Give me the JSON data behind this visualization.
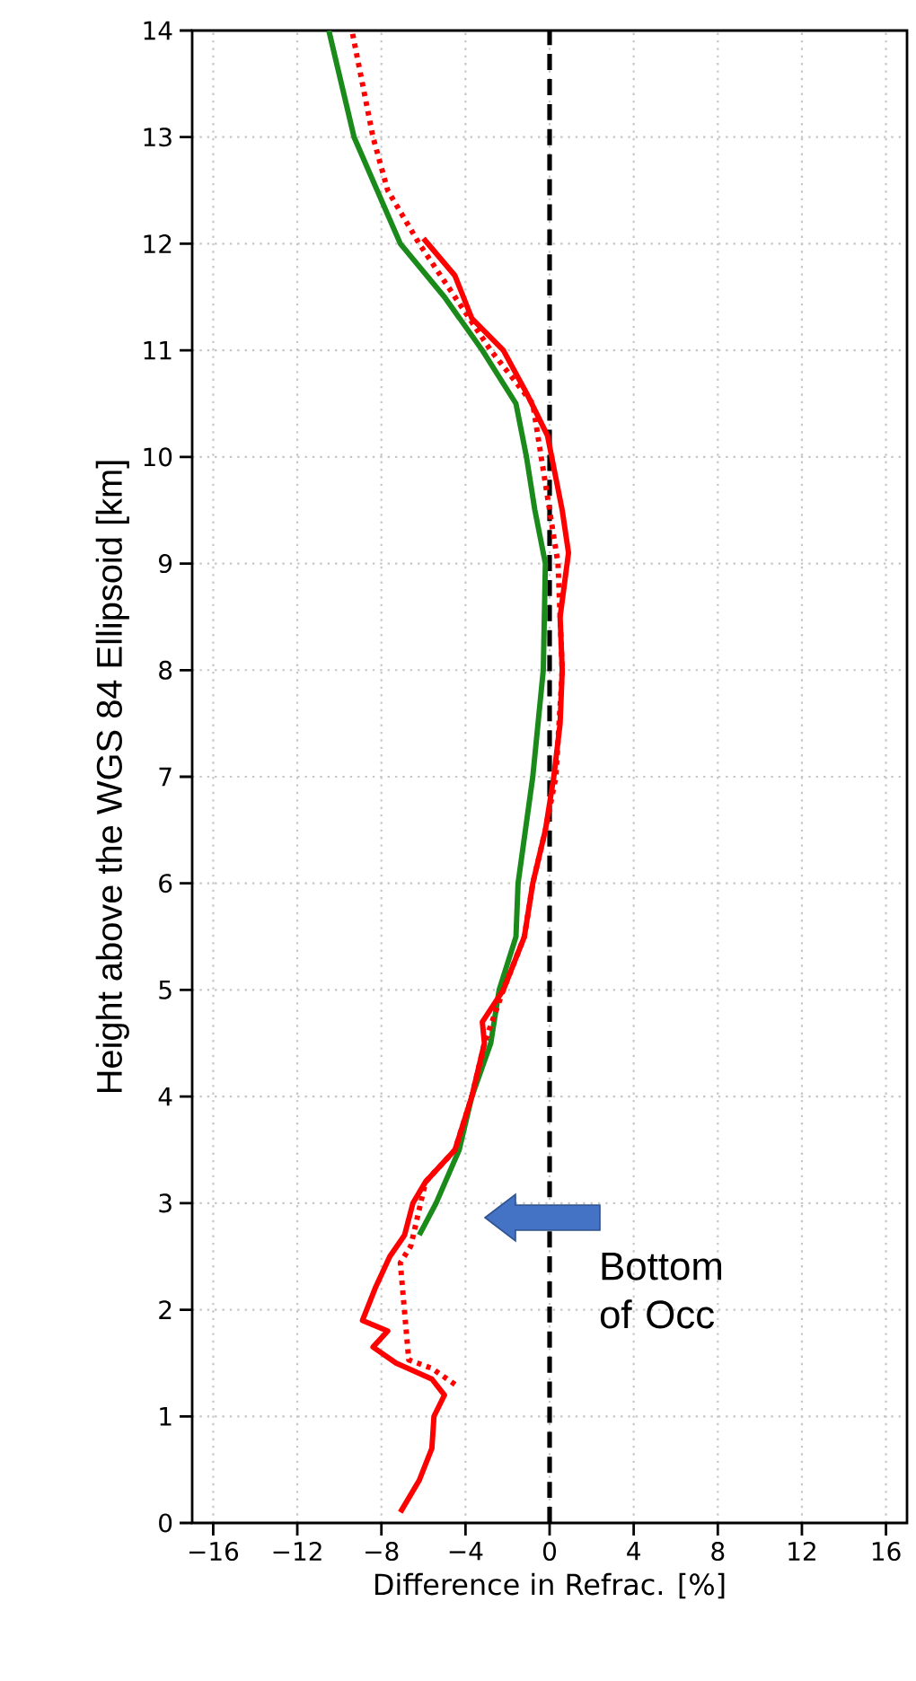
{
  "chart_data": {
    "type": "line",
    "xlabel": "Difference in Refrac.  [%]",
    "ylabel": "Height above the WGS 84 Ellipsoid  [km]",
    "xlim": [
      -17,
      17
    ],
    "ylim": [
      0,
      14
    ],
    "xticks": [
      {
        "value": -16,
        "label": "−16"
      },
      {
        "value": -12,
        "label": "−12"
      },
      {
        "value": -8,
        "label": "−8"
      },
      {
        "value": -4,
        "label": "−4"
      },
      0,
      4,
      8,
      12,
      16
    ],
    "yticks": [
      0,
      1,
      2,
      3,
      4,
      5,
      6,
      7,
      8,
      9,
      10,
      11,
      12,
      13,
      14
    ],
    "grid": true,
    "marker": "none",
    "series": [
      {
        "color": "#1a8a1a",
        "line_style": "solid",
        "x": [
          -6.2,
          -5.4,
          -4.3,
          -3.7,
          -2.8,
          -2.4,
          -1.6,
          -1.5,
          -0.8,
          -0.3,
          -0.2,
          -0.7,
          -1.1,
          -1.6,
          -3.2,
          -5.0,
          -7.1,
          -9.3,
          -10.5
        ],
        "values": [
          2.7,
          3,
          3.5,
          4,
          4.5,
          5,
          5.5,
          6,
          7,
          8,
          9,
          9.5,
          10,
          10.5,
          11,
          11.5,
          12,
          13,
          14
        ]
      },
      {
        "color": "#ff0000",
        "line_style": "solid",
        "x": [
          -7.1,
          -6.2,
          -5.6,
          -5.5,
          -5.0,
          -5.6,
          -7.3,
          -8.4,
          -7.7,
          -8.9,
          -8.3,
          -7.6,
          -6.9,
          -6.5,
          -5.9,
          -4.5,
          -3.7,
          -3.1,
          -3.2,
          -2.2,
          -1.2,
          -0.8,
          -0.2,
          0.2,
          0.5,
          0.6,
          0.5,
          0.9,
          0.6,
          -0.1,
          -1.1,
          -2.2,
          -3.7,
          -4.5,
          -6.0
        ],
        "values": [
          0.1,
          0.4,
          0.7,
          1.0,
          1.2,
          1.35,
          1.5,
          1.65,
          1.8,
          1.9,
          2.2,
          2.5,
          2.7,
          3.0,
          3.2,
          3.5,
          4,
          4.5,
          4.7,
          5,
          5.5,
          6,
          6.5,
          7,
          7.5,
          8,
          8.5,
          9.1,
          9.5,
          10.2,
          10.6,
          11,
          11.3,
          11.7,
          12.05
        ]
      },
      {
        "color": "#ff0000",
        "line_style": "dotted",
        "x": [
          -4.5,
          -5.6,
          -6.7,
          -7.1,
          -6.6,
          -5.9,
          -4.5,
          -3.7,
          -3.1,
          -2.2,
          -1.2,
          -0.8,
          -0.2,
          0.3,
          0.6,
          0.4,
          0.0,
          -0.4,
          -0.8,
          -2.8,
          -4.5,
          -6.2,
          -7.7,
          -8.4,
          -9.4
        ],
        "values": [
          1.3,
          1.45,
          1.53,
          2.44,
          2.6,
          3.2,
          3.5,
          4,
          4.5,
          5,
          5.5,
          6,
          6.5,
          7,
          8,
          9,
          9.5,
          10,
          10.5,
          11,
          11.5,
          12,
          12.5,
          13,
          14
        ]
      }
    ],
    "ref_lines": [
      {
        "axis": "x",
        "value": 0,
        "color": "#000000",
        "line_style": "dashed"
      }
    ],
    "annotations": [
      "Bottom of Occ"
    ]
  }
}
